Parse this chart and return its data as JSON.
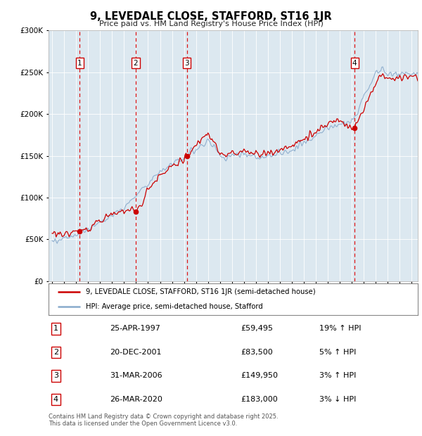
{
  "title": "9, LEVEDALE CLOSE, STAFFORD, ST16 1JR",
  "subtitle": "Price paid vs. HM Land Registry's House Price Index (HPI)",
  "legend_line1": "9, LEVEDALE CLOSE, STAFFORD, ST16 1JR (semi-detached house)",
  "legend_line2": "HPI: Average price, semi-detached house, Stafford",
  "footnote": "Contains HM Land Registry data © Crown copyright and database right 2025.\nThis data is licensed under the Open Government Licence v3.0.",
  "transactions": [
    {
      "num": 1,
      "date": "25-APR-1997",
      "price": 59495,
      "hpi_pct": "19%",
      "hpi_dir": "↑"
    },
    {
      "num": 2,
      "date": "20-DEC-2001",
      "price": 83500,
      "hpi_pct": "5%",
      "hpi_dir": "↑"
    },
    {
      "num": 3,
      "date": "31-MAR-2006",
      "price": 149950,
      "hpi_pct": "3%",
      "hpi_dir": "↑"
    },
    {
      "num": 4,
      "date": "26-MAR-2020",
      "price": 183000,
      "hpi_pct": "3%",
      "hpi_dir": "↓"
    }
  ],
  "transaction_years": [
    1997.31,
    2001.97,
    2006.25,
    2020.23
  ],
  "transaction_prices": [
    59495,
    83500,
    149950,
    183000
  ],
  "ylim": [
    0,
    300000
  ],
  "yticks": [
    0,
    50000,
    100000,
    150000,
    200000,
    250000,
    300000
  ],
  "xlim": [
    1994.7,
    2025.5
  ],
  "plot_bg_color": "#dce8f0",
  "red_line_color": "#cc0000",
  "blue_line_color": "#88aacc",
  "dashed_line_color": "#dd0000",
  "marker_box_color": "#cc0000",
  "noise_seed": 42
}
